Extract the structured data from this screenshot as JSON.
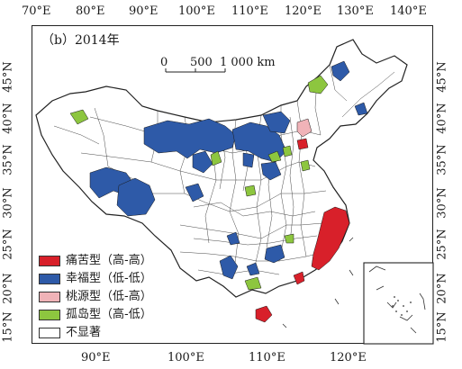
{
  "title": "（b）2014年",
  "top_lon_labels": [
    "70°E",
    "80°E",
    "90°E",
    "100°E",
    "110°E",
    "120°E",
    "130°E",
    "140°E"
  ],
  "bottom_lon_labels": [
    "90°E",
    "100°E",
    "110°E",
    "120°E"
  ],
  "lat_labels": [
    "45°N",
    "40°N",
    "35°N",
    "30°N",
    "25°N",
    "20°N",
    "15°N"
  ],
  "scale": {
    "tick_0": "0",
    "tick_500": "500",
    "tick_1000": "1 000 km"
  },
  "legend": [
    {
      "label": "痛苦型（高-高）",
      "color": "#d8202a"
    },
    {
      "label": "幸福型（低-低）",
      "color": "#2e5aa8"
    },
    {
      "label": "桃源型（低-高）",
      "color": "#f0b3b8"
    },
    {
      "label": "孤岛型（高-低）",
      "color": "#8dc63f"
    },
    {
      "label": "不显著",
      "color": "#ffffff"
    }
  ]
}
